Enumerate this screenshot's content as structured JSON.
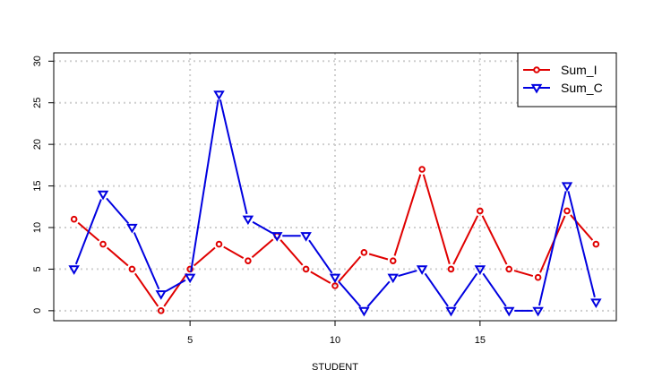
{
  "chart_data": {
    "type": "line",
    "title": "",
    "xlabel": "STUDENT",
    "ylabel": "",
    "x": [
      1,
      2,
      3,
      4,
      5,
      6,
      7,
      8,
      9,
      10,
      11,
      12,
      13,
      14,
      15,
      16,
      17,
      18,
      19
    ],
    "xlim": [
      0.3,
      19.7
    ],
    "ylim": [
      -1.2,
      31
    ],
    "x_ticks": [
      5,
      10,
      15
    ],
    "y_ticks": [
      0,
      5,
      10,
      15,
      20,
      25,
      30
    ],
    "grid": "dotted",
    "legend_position": "top-right",
    "series": [
      {
        "name": "Sum_I",
        "color": "#e00000",
        "marker": "circle",
        "values": [
          11,
          8,
          5,
          0,
          5,
          8,
          6,
          9,
          5,
          3,
          7,
          6,
          17,
          5,
          12,
          5,
          4,
          12,
          8
        ]
      },
      {
        "name": "Sum_C",
        "color": "#0000e0",
        "marker": "triangle-down",
        "values": [
          5,
          14,
          10,
          2,
          4,
          26,
          11,
          9,
          9,
          4,
          0,
          4,
          5,
          0,
          5,
          0,
          0,
          15,
          1
        ]
      }
    ]
  }
}
